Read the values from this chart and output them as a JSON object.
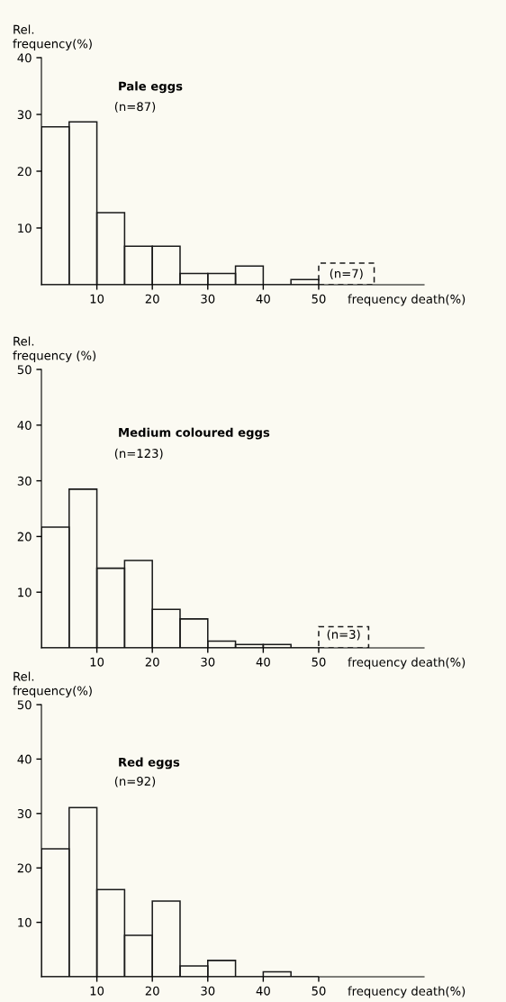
{
  "chart_data": [
    {
      "type": "histogram",
      "title": "Pale eggs",
      "subtitle": "(n=87)",
      "xlabel": "frequency death(%)",
      "ylabel": "Rel.\nfrequency(%)",
      "xlim": [
        0,
        69
      ],
      "xticks": [
        10,
        20,
        30,
        40,
        50
      ],
      "ylim": [
        0,
        40
      ],
      "yticks": [
        10,
        20,
        30,
        40
      ],
      "bins": [
        0,
        5,
        10,
        15,
        20,
        25,
        30,
        35,
        40,
        45,
        50,
        60
      ],
      "series": [
        {
          "color": "#1a1a1a",
          "line_style": "solid",
          "values": [
            27.8,
            28.7,
            12.7,
            6.8,
            6.8,
            2.0,
            2.0,
            3.3,
            0,
            0.9,
            null
          ]
        },
        {
          "color": "#1a1a1a",
          "line_style": "dashed",
          "values": [
            null,
            null,
            null,
            null,
            null,
            null,
            null,
            null,
            null,
            null,
            3.8
          ]
        }
      ],
      "annotations": [
        "(n=7)"
      ]
    },
    {
      "type": "histogram",
      "title": "Medium coloured eggs",
      "subtitle": "(n=123)",
      "xlabel": "frequency death(%)",
      "ylabel": "Rel.\nfrequency (%)",
      "xlim": [
        0,
        69
      ],
      "xticks": [
        10,
        20,
        30,
        40,
        50
      ],
      "ylim": [
        0,
        50
      ],
      "yticks": [
        10,
        20,
        30,
        40,
        50
      ],
      "bins": [
        0,
        5,
        10,
        15,
        20,
        25,
        30,
        35,
        40,
        45,
        50,
        59
      ],
      "series": [
        {
          "color": "#1a1a1a",
          "line_style": "solid",
          "values": [
            21.7,
            28.5,
            14.3,
            15.7,
            6.9,
            5.2,
            1.2,
            0.6,
            0.6,
            0,
            null
          ]
        },
        {
          "color": "#1a1a1a",
          "line_style": "dashed",
          "values": [
            null,
            null,
            null,
            null,
            null,
            null,
            null,
            null,
            null,
            null,
            3.8
          ]
        }
      ],
      "annotations": [
        "(n=3)"
      ]
    },
    {
      "type": "histogram",
      "title": "Red eggs",
      "subtitle": "(n=92)",
      "xlabel": "frequency death(%)",
      "ylabel": "Rel.\nfrequency(%)",
      "xlim": [
        0,
        69
      ],
      "xticks": [
        10,
        20,
        30,
        40,
        50
      ],
      "ylim": [
        0,
        50
      ],
      "yticks": [
        10,
        20,
        30,
        40,
        50
      ],
      "bins": [
        0,
        5,
        10,
        15,
        20,
        25,
        30,
        35,
        40,
        45,
        50
      ],
      "series": [
        {
          "color": "#1a1a1a",
          "line_style": "solid",
          "values": [
            23.5,
            31.1,
            16.0,
            7.6,
            13.9,
            2.0,
            3.0,
            0,
            0.9,
            0
          ]
        }
      ]
    }
  ]
}
